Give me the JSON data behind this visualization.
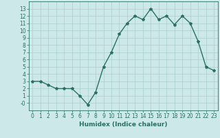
{
  "x": [
    0,
    1,
    2,
    3,
    4,
    5,
    6,
    7,
    8,
    9,
    10,
    11,
    12,
    13,
    14,
    15,
    16,
    17,
    18,
    19,
    20,
    21,
    22,
    23
  ],
  "y": [
    3.0,
    3.0,
    2.5,
    2.0,
    2.0,
    2.0,
    1.0,
    -0.2,
    1.5,
    5.0,
    7.0,
    9.5,
    11.0,
    12.0,
    11.5,
    13.0,
    11.5,
    12.0,
    10.8,
    12.0,
    11.0,
    8.5,
    5.0,
    4.5
  ],
  "line_color": "#2a7060",
  "marker": "*",
  "marker_size": 3,
  "bg_color": "#cce8e8",
  "grid_color": "#aacece",
  "xlabel": "Humidex (Indice chaleur)",
  "xlim": [
    -0.5,
    23.5
  ],
  "ylim": [
    -1,
    14
  ],
  "ytick_labels": [
    "13",
    "12",
    "11",
    "10",
    "9",
    "8",
    "7",
    "6",
    "5",
    "4",
    "3",
    "2",
    "1",
    "-0"
  ],
  "ytick_vals": [
    13,
    12,
    11,
    10,
    9,
    8,
    7,
    6,
    5,
    4,
    3,
    2,
    1,
    0
  ],
  "xticks": [
    0,
    1,
    2,
    3,
    4,
    5,
    6,
    7,
    8,
    9,
    10,
    11,
    12,
    13,
    14,
    15,
    16,
    17,
    18,
    19,
    20,
    21,
    22,
    23
  ],
  "tick_color": "#2a7060",
  "label_color": "#2a7060",
  "axis_color": "#2a7060",
  "font_size": 5.5,
  "xlabel_fontsize": 6.5,
  "line_width": 1.0
}
